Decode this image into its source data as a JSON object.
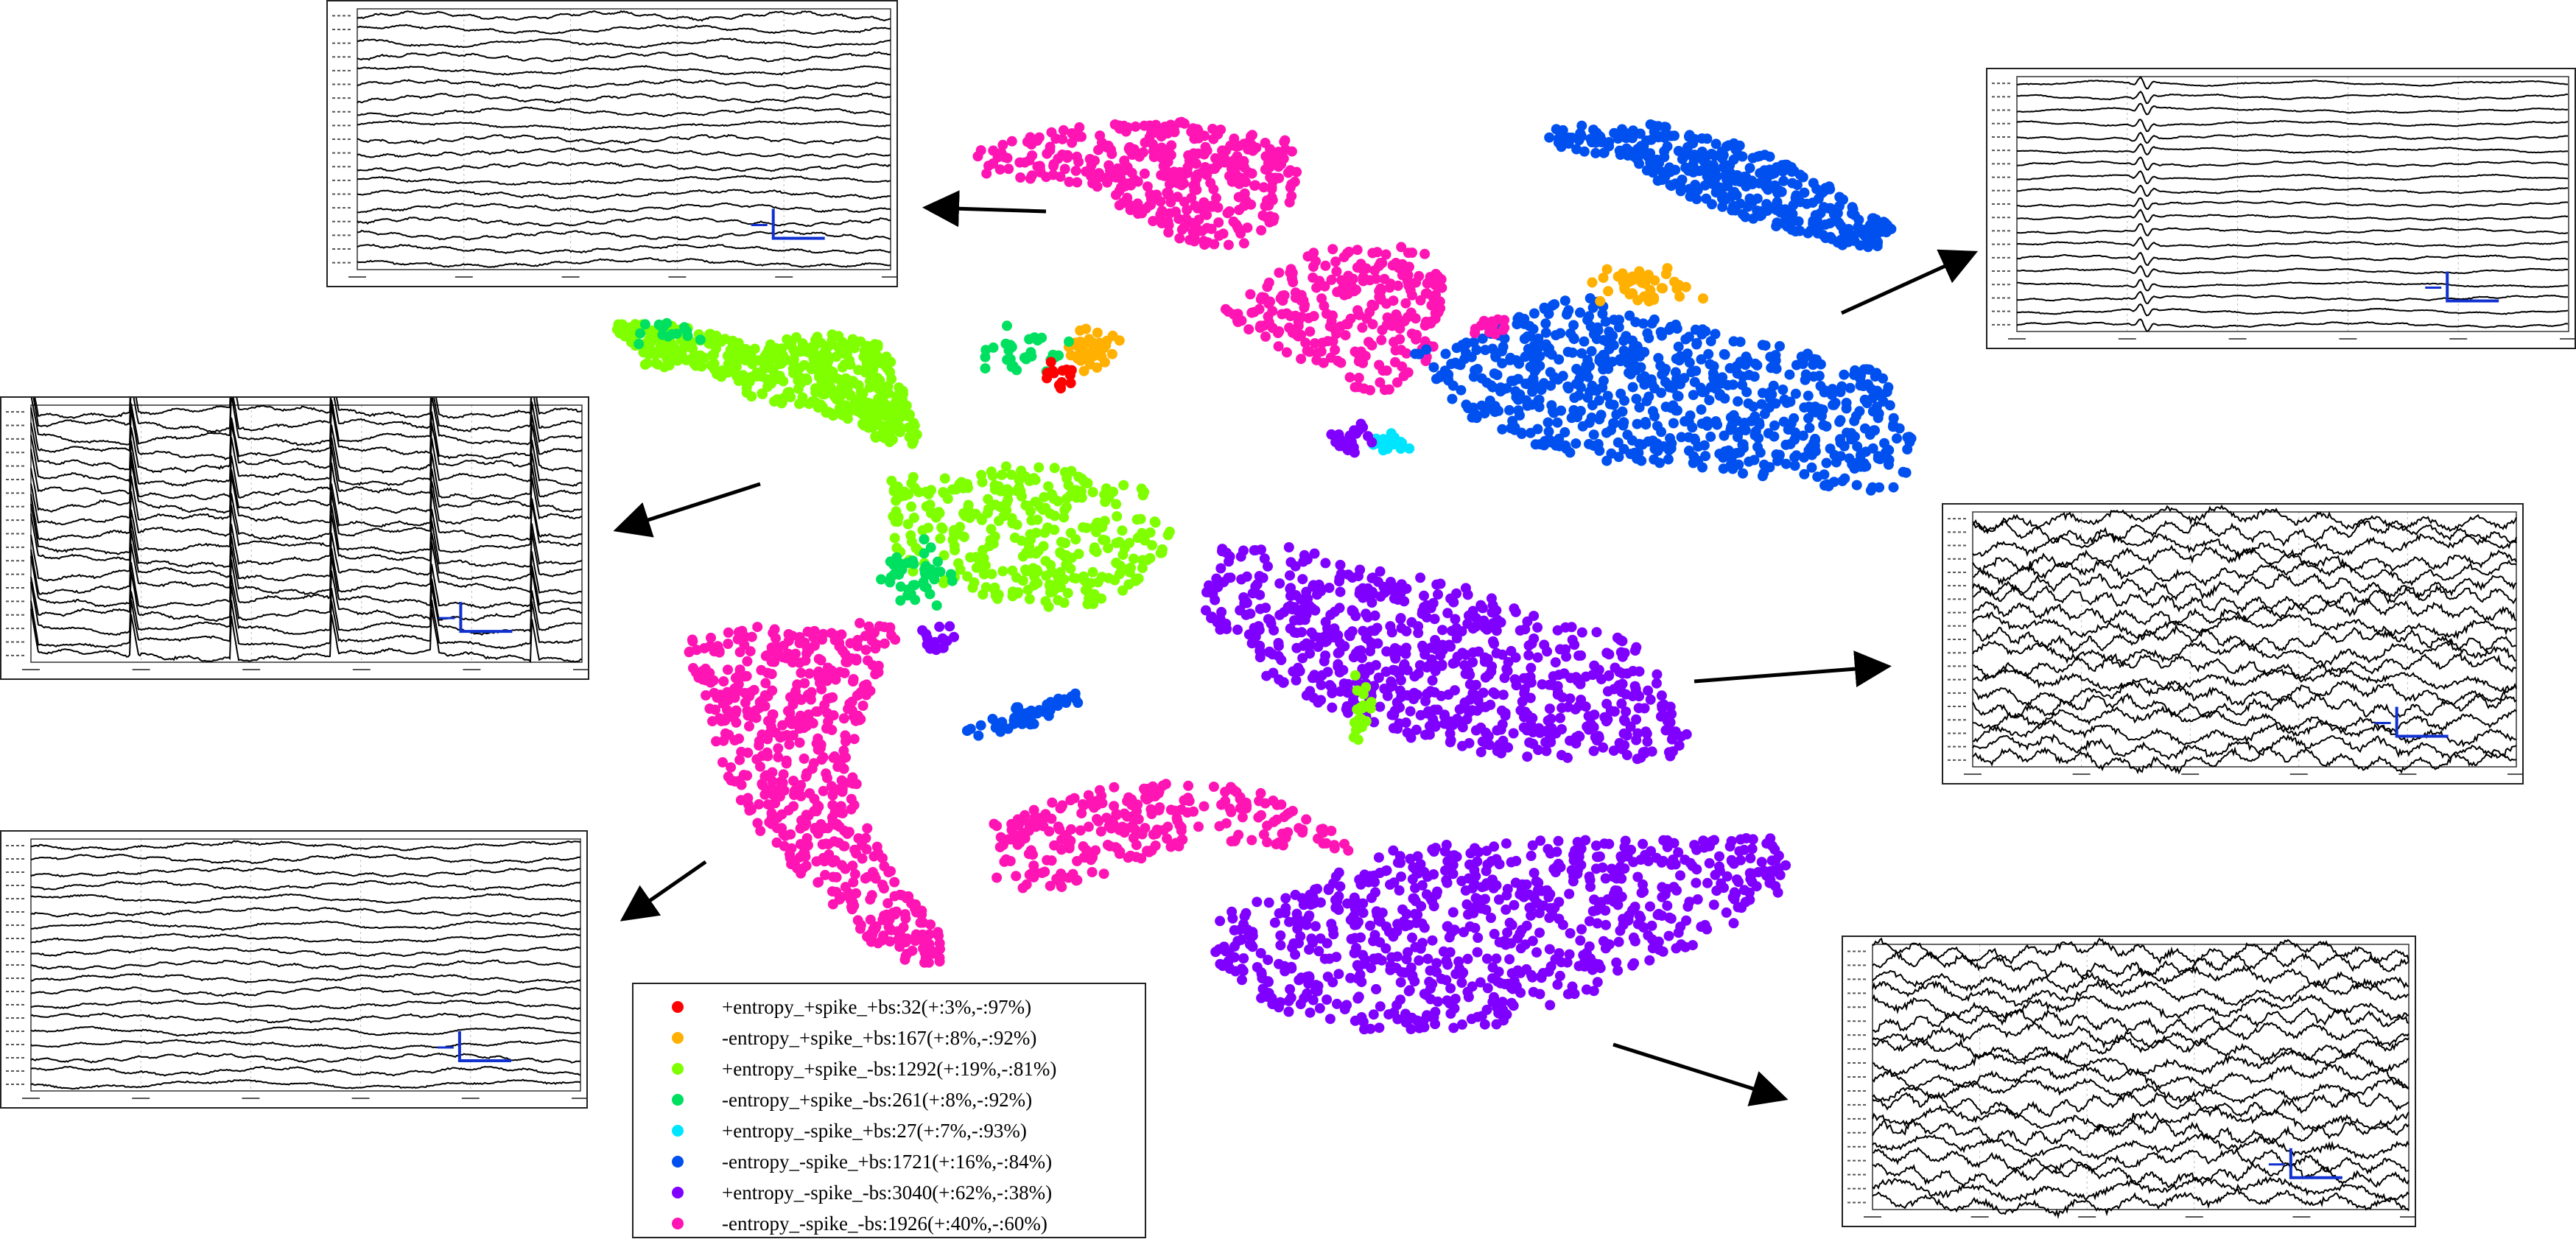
{
  "colors": {
    "red": "#ff0000",
    "orange": "#ffb000",
    "lime": "#7fff00",
    "green": "#00e060",
    "cyan": "#00e5ff",
    "blue": "#0050f0",
    "purple": "#8000ff",
    "magenta": "#ff14b4"
  },
  "legend": [
    {
      "label": "+entropy_+spike_+bs:32(+:3%,-:97%)",
      "color": "#ff0000"
    },
    {
      "label": "-entropy_+spike_+bs:167(+:8%,-:92%)",
      "color": "#ffb000"
    },
    {
      "label": "+entropy_+spike_-bs:1292(+:19%,-:81%)",
      "color": "#7fff00"
    },
    {
      "label": "-entropy_+spike_-bs:261(+:8%,-:92%)",
      "color": "#00e060"
    },
    {
      "label": "+entropy_-spike_+bs:27(+:7%,-:93%)",
      "color": "#00e5ff"
    },
    {
      "label": "-entropy_-spike_+bs:1721(+:16%,-:84%)",
      "color": "#0050f0"
    },
    {
      "label": "+entropy_-spike_-bs:3040(+:62%,-:38%)",
      "color": "#8000ff"
    },
    {
      "label": "-entropy_-spike_-bs:1926(+:40%,-:60%)",
      "color": "#ff14b4"
    }
  ],
  "clusters": [
    {
      "name": "magenta-top",
      "color": "#ff14b4"
    },
    {
      "name": "blue-top-right",
      "color": "#0050f0"
    },
    {
      "name": "lime-left",
      "color": "#7fff00"
    },
    {
      "name": "magenta-center",
      "color": "#ff14b4"
    },
    {
      "name": "blue-right",
      "color": "#0050f0"
    },
    {
      "name": "lime-center",
      "color": "#7fff00"
    },
    {
      "name": "purple-center-right",
      "color": "#8000ff"
    },
    {
      "name": "magenta-left-arc",
      "color": "#ff14b4"
    },
    {
      "name": "magenta-bottom-center",
      "color": "#ff14b4"
    },
    {
      "name": "purple-bottom",
      "color": "#8000ff"
    },
    {
      "name": "blue-small",
      "color": "#0050f0"
    }
  ],
  "eeg_panels": [
    {
      "name": "eeg-top-left",
      "style": "smooth"
    },
    {
      "name": "eeg-left",
      "style": "spiky"
    },
    {
      "name": "eeg-bottom-left",
      "style": "smooth"
    },
    {
      "name": "eeg-top-right",
      "style": "flat"
    },
    {
      "name": "eeg-mid-right",
      "style": "dense"
    },
    {
      "name": "eeg-bottom-right",
      "style": "dense"
    }
  ]
}
